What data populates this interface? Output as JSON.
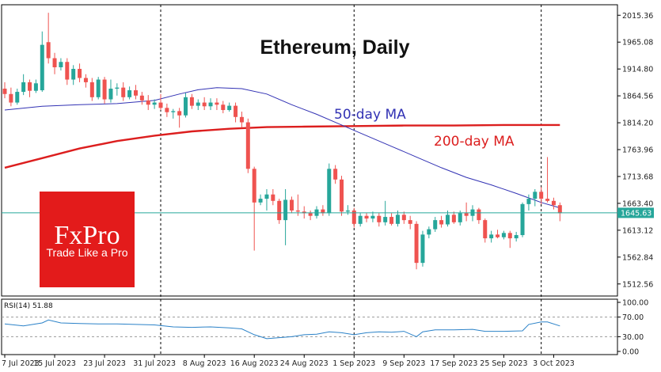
{
  "chart_data": [
    {
      "type": "candlestick",
      "title": "Ethereum, Daily",
      "ylim": [
        1490,
        2035
      ],
      "y_ticks": [
        "2015.36",
        "1965.08",
        "1914.80",
        "1864.56",
        "1814.20",
        "1763.96",
        "1713.68",
        "1663.40",
        "1613.12",
        "1562.84",
        "1512.56"
      ],
      "y_tick_values": [
        2015.36,
        1965.08,
        1914.8,
        1864.56,
        1814.2,
        1763.96,
        1713.68,
        1663.4,
        1613.12,
        1562.84,
        1512.56
      ],
      "x_ticks": [
        "7 Jul 2023",
        "15 Jul 2023",
        "23 Jul 2023",
        "31 Jul 2023",
        "8 Aug 2023",
        "16 Aug 2023",
        "24 Aug 2023",
        "1 Sep 2023",
        "9 Sep 2023",
        "17 Sep 2023",
        "25 Sep 2023",
        "3 Oct 2023"
      ],
      "x_tick_days": [
        0,
        8,
        16,
        24,
        32,
        40,
        48,
        56,
        64,
        72,
        80,
        88
      ],
      "current_price": "1645.63",
      "current_price_value": 1645.63,
      "period_separators_days": [
        25,
        56,
        86
      ],
      "candles": [
        {
          "d": 0,
          "o": 1878,
          "h": 1890,
          "l": 1860,
          "c": 1868
        },
        {
          "d": 1,
          "o": 1868,
          "h": 1880,
          "l": 1845,
          "c": 1852
        },
        {
          "d": 2,
          "o": 1852,
          "h": 1878,
          "l": 1848,
          "c": 1872
        },
        {
          "d": 3,
          "o": 1872,
          "h": 1905,
          "l": 1866,
          "c": 1890
        },
        {
          "d": 4,
          "o": 1890,
          "h": 1895,
          "l": 1862,
          "c": 1874
        },
        {
          "d": 5,
          "o": 1874,
          "h": 1895,
          "l": 1870,
          "c": 1888
        },
        {
          "d": 6,
          "o": 1875,
          "h": 1985,
          "l": 1872,
          "c": 1960
        },
        {
          "d": 7,
          "o": 1965,
          "h": 2020,
          "l": 1925,
          "c": 1935
        },
        {
          "d": 8,
          "o": 1935,
          "h": 1945,
          "l": 1905,
          "c": 1918
        },
        {
          "d": 9,
          "o": 1918,
          "h": 1935,
          "l": 1912,
          "c": 1928
        },
        {
          "d": 10,
          "o": 1928,
          "h": 1935,
          "l": 1885,
          "c": 1895
        },
        {
          "d": 11,
          "o": 1895,
          "h": 1922,
          "l": 1885,
          "c": 1915
        },
        {
          "d": 12,
          "o": 1915,
          "h": 1925,
          "l": 1890,
          "c": 1898
        },
        {
          "d": 13,
          "o": 1898,
          "h": 1905,
          "l": 1880,
          "c": 1890
        },
        {
          "d": 14,
          "o": 1890,
          "h": 1898,
          "l": 1855,
          "c": 1862
        },
        {
          "d": 15,
          "o": 1862,
          "h": 1900,
          "l": 1858,
          "c": 1895
        },
        {
          "d": 16,
          "o": 1895,
          "h": 1900,
          "l": 1850,
          "c": 1858
        },
        {
          "d": 17,
          "o": 1858,
          "h": 1895,
          "l": 1852,
          "c": 1878
        },
        {
          "d": 18,
          "o": 1878,
          "h": 1888,
          "l": 1865,
          "c": 1880
        },
        {
          "d": 19,
          "o": 1880,
          "h": 1890,
          "l": 1855,
          "c": 1862
        },
        {
          "d": 20,
          "o": 1862,
          "h": 1882,
          "l": 1858,
          "c": 1875
        },
        {
          "d": 21,
          "o": 1875,
          "h": 1885,
          "l": 1858,
          "c": 1865
        },
        {
          "d": 22,
          "o": 1865,
          "h": 1872,
          "l": 1848,
          "c": 1856
        },
        {
          "d": 23,
          "o": 1856,
          "h": 1866,
          "l": 1838,
          "c": 1848
        },
        {
          "d": 24,
          "o": 1848,
          "h": 1858,
          "l": 1840,
          "c": 1852
        },
        {
          "d": 25,
          "o": 1852,
          "h": 1868,
          "l": 1838,
          "c": 1842
        },
        {
          "d": 26,
          "o": 1842,
          "h": 1850,
          "l": 1825,
          "c": 1834
        },
        {
          "d": 27,
          "o": 1834,
          "h": 1840,
          "l": 1822,
          "c": 1836
        },
        {
          "d": 28,
          "o": 1836,
          "h": 1842,
          "l": 1805,
          "c": 1828
        },
        {
          "d": 29,
          "o": 1828,
          "h": 1870,
          "l": 1824,
          "c": 1862
        },
        {
          "d": 30,
          "o": 1862,
          "h": 1868,
          "l": 1840,
          "c": 1846
        },
        {
          "d": 31,
          "o": 1846,
          "h": 1858,
          "l": 1838,
          "c": 1852
        },
        {
          "d": 32,
          "o": 1852,
          "h": 1862,
          "l": 1838,
          "c": 1845
        },
        {
          "d": 33,
          "o": 1845,
          "h": 1860,
          "l": 1838,
          "c": 1852
        },
        {
          "d": 34,
          "o": 1852,
          "h": 1860,
          "l": 1838,
          "c": 1848
        },
        {
          "d": 35,
          "o": 1848,
          "h": 1855,
          "l": 1832,
          "c": 1838
        },
        {
          "d": 36,
          "o": 1838,
          "h": 1852,
          "l": 1835,
          "c": 1846
        },
        {
          "d": 37,
          "o": 1846,
          "h": 1852,
          "l": 1815,
          "c": 1825
        },
        {
          "d": 38,
          "o": 1825,
          "h": 1835,
          "l": 1805,
          "c": 1815
        },
        {
          "d": 39,
          "o": 1815,
          "h": 1822,
          "l": 1720,
          "c": 1728
        },
        {
          "d": 40,
          "o": 1728,
          "h": 1732,
          "l": 1575,
          "c": 1665
        },
        {
          "d": 41,
          "o": 1665,
          "h": 1680,
          "l": 1660,
          "c": 1672
        },
        {
          "d": 42,
          "o": 1672,
          "h": 1690,
          "l": 1650,
          "c": 1680
        },
        {
          "d": 43,
          "o": 1680,
          "h": 1690,
          "l": 1660,
          "c": 1668
        },
        {
          "d": 44,
          "o": 1668,
          "h": 1672,
          "l": 1625,
          "c": 1632
        },
        {
          "d": 45,
          "o": 1632,
          "h": 1690,
          "l": 1585,
          "c": 1670
        },
        {
          "d": 46,
          "o": 1670,
          "h": 1676,
          "l": 1645,
          "c": 1650
        },
        {
          "d": 47,
          "o": 1650,
          "h": 1680,
          "l": 1640,
          "c": 1648
        },
        {
          "d": 48,
          "o": 1648,
          "h": 1658,
          "l": 1635,
          "c": 1645
        },
        {
          "d": 49,
          "o": 1645,
          "h": 1650,
          "l": 1632,
          "c": 1640
        },
        {
          "d": 50,
          "o": 1640,
          "h": 1658,
          "l": 1635,
          "c": 1652
        },
        {
          "d": 51,
          "o": 1652,
          "h": 1660,
          "l": 1640,
          "c": 1645
        },
        {
          "d": 52,
          "o": 1645,
          "h": 1738,
          "l": 1640,
          "c": 1728
        },
        {
          "d": 53,
          "o": 1728,
          "h": 1735,
          "l": 1700,
          "c": 1708
        },
        {
          "d": 54,
          "o": 1708,
          "h": 1715,
          "l": 1640,
          "c": 1648
        },
        {
          "d": 55,
          "o": 1648,
          "h": 1660,
          "l": 1642,
          "c": 1650
        },
        {
          "d": 56,
          "o": 1650,
          "h": 1655,
          "l": 1618,
          "c": 1625
        },
        {
          "d": 57,
          "o": 1625,
          "h": 1645,
          "l": 1620,
          "c": 1640
        },
        {
          "d": 58,
          "o": 1640,
          "h": 1645,
          "l": 1628,
          "c": 1635
        },
        {
          "d": 59,
          "o": 1635,
          "h": 1648,
          "l": 1628,
          "c": 1640
        },
        {
          "d": 60,
          "o": 1640,
          "h": 1645,
          "l": 1620,
          "c": 1628
        },
        {
          "d": 61,
          "o": 1628,
          "h": 1668,
          "l": 1622,
          "c": 1638
        },
        {
          "d": 62,
          "o": 1638,
          "h": 1645,
          "l": 1622,
          "c": 1625
        },
        {
          "d": 63,
          "o": 1625,
          "h": 1650,
          "l": 1620,
          "c": 1642
        },
        {
          "d": 64,
          "o": 1642,
          "h": 1648,
          "l": 1625,
          "c": 1632
        },
        {
          "d": 65,
          "o": 1632,
          "h": 1640,
          "l": 1615,
          "c": 1625
        },
        {
          "d": 66,
          "o": 1625,
          "h": 1630,
          "l": 1540,
          "c": 1552
        },
        {
          "d": 67,
          "o": 1552,
          "h": 1612,
          "l": 1545,
          "c": 1605
        },
        {
          "d": 68,
          "o": 1605,
          "h": 1620,
          "l": 1598,
          "c": 1615
        },
        {
          "d": 69,
          "o": 1615,
          "h": 1638,
          "l": 1610,
          "c": 1632
        },
        {
          "d": 70,
          "o": 1632,
          "h": 1640,
          "l": 1618,
          "c": 1624
        },
        {
          "d": 71,
          "o": 1624,
          "h": 1650,
          "l": 1620,
          "c": 1642
        },
        {
          "d": 72,
          "o": 1642,
          "h": 1648,
          "l": 1625,
          "c": 1628
        },
        {
          "d": 73,
          "o": 1628,
          "h": 1650,
          "l": 1622,
          "c": 1645
        },
        {
          "d": 74,
          "o": 1645,
          "h": 1665,
          "l": 1630,
          "c": 1640
        },
        {
          "d": 75,
          "o": 1640,
          "h": 1660,
          "l": 1630,
          "c": 1652
        },
        {
          "d": 76,
          "o": 1652,
          "h": 1655,
          "l": 1625,
          "c": 1632
        },
        {
          "d": 77,
          "o": 1632,
          "h": 1635,
          "l": 1590,
          "c": 1598
        },
        {
          "d": 78,
          "o": 1598,
          "h": 1612,
          "l": 1590,
          "c": 1605
        },
        {
          "d": 79,
          "o": 1605,
          "h": 1614,
          "l": 1598,
          "c": 1600
        },
        {
          "d": 80,
          "o": 1600,
          "h": 1612,
          "l": 1596,
          "c": 1608
        },
        {
          "d": 81,
          "o": 1608,
          "h": 1612,
          "l": 1580,
          "c": 1598
        },
        {
          "d": 82,
          "o": 1598,
          "h": 1610,
          "l": 1592,
          "c": 1604
        },
        {
          "d": 83,
          "o": 1604,
          "h": 1665,
          "l": 1600,
          "c": 1662
        },
        {
          "d": 84,
          "o": 1662,
          "h": 1680,
          "l": 1650,
          "c": 1672
        },
        {
          "d": 85,
          "o": 1672,
          "h": 1690,
          "l": 1658,
          "c": 1685
        },
        {
          "d": 86,
          "o": 1685,
          "h": 1694,
          "l": 1662,
          "c": 1672
        },
        {
          "d": 87,
          "o": 1672,
          "h": 1750,
          "l": 1665,
          "c": 1668
        },
        {
          "d": 88,
          "o": 1668,
          "h": 1674,
          "l": 1652,
          "c": 1660
        },
        {
          "d": 89,
          "o": 1660,
          "h": 1665,
          "l": 1630,
          "c": 1645
        }
      ],
      "ma50_name": "50-day MA",
      "ma50_color": "#3232b4",
      "ma50": [
        [
          0,
          1838
        ],
        [
          6,
          1845
        ],
        [
          12,
          1848
        ],
        [
          18,
          1850
        ],
        [
          24,
          1856
        ],
        [
          28,
          1868
        ],
        [
          31,
          1876
        ],
        [
          34,
          1880
        ],
        [
          38,
          1878
        ],
        [
          42,
          1868
        ],
        [
          46,
          1848
        ],
        [
          50,
          1830
        ],
        [
          54,
          1810
        ],
        [
          58,
          1790
        ],
        [
          62,
          1770
        ],
        [
          66,
          1750
        ],
        [
          70,
          1730
        ],
        [
          74,
          1712
        ],
        [
          78,
          1698
        ],
        [
          82,
          1682
        ],
        [
          86,
          1665
        ],
        [
          89,
          1655
        ]
      ],
      "ma200_name": "200-day MA",
      "ma200_color": "#dc1e1e",
      "ma200": [
        [
          0,
          1730
        ],
        [
          6,
          1748
        ],
        [
          12,
          1766
        ],
        [
          18,
          1780
        ],
        [
          24,
          1790
        ],
        [
          30,
          1798
        ],
        [
          36,
          1803
        ],
        [
          42,
          1806
        ],
        [
          48,
          1807
        ],
        [
          56,
          1808
        ],
        [
          64,
          1809
        ],
        [
          72,
          1809
        ],
        [
          80,
          1810
        ],
        [
          89,
          1810
        ]
      ]
    },
    {
      "type": "line",
      "name": "RSI(14) 51.88",
      "ylim": [
        0,
        100
      ],
      "y_ticks": [
        "100.00",
        "70.00",
        "30.00",
        "0.00"
      ],
      "y_tick_values": [
        100,
        70,
        30,
        0
      ],
      "levels": [
        70,
        30
      ],
      "color": "#2b82c8",
      "values": [
        [
          0,
          56
        ],
        [
          3,
          52
        ],
        [
          6,
          58
        ],
        [
          7,
          64
        ],
        [
          9,
          58
        ],
        [
          12,
          57
        ],
        [
          15,
          56
        ],
        [
          18,
          56
        ],
        [
          21,
          55
        ],
        [
          24,
          54
        ],
        [
          27,
          50
        ],
        [
          30,
          49
        ],
        [
          33,
          50
        ],
        [
          36,
          48
        ],
        [
          38,
          46
        ],
        [
          40,
          34
        ],
        [
          42,
          26
        ],
        [
          44,
          28
        ],
        [
          46,
          30
        ],
        [
          48,
          34
        ],
        [
          50,
          35
        ],
        [
          52,
          40
        ],
        [
          54,
          38
        ],
        [
          56,
          34
        ],
        [
          58,
          38
        ],
        [
          60,
          40
        ],
        [
          62,
          39
        ],
        [
          64,
          41
        ],
        [
          66,
          30
        ],
        [
          67,
          40
        ],
        [
          69,
          44
        ],
        [
          72,
          44
        ],
        [
          75,
          45
        ],
        [
          77,
          41
        ],
        [
          80,
          41
        ],
        [
          83,
          42
        ],
        [
          84,
          55
        ],
        [
          86,
          60
        ],
        [
          87,
          60
        ],
        [
          89,
          52
        ]
      ]
    }
  ],
  "logo": {
    "brand": "FxPro",
    "tagline": "Trade Like a Pro",
    "color": "#e31b1b"
  }
}
